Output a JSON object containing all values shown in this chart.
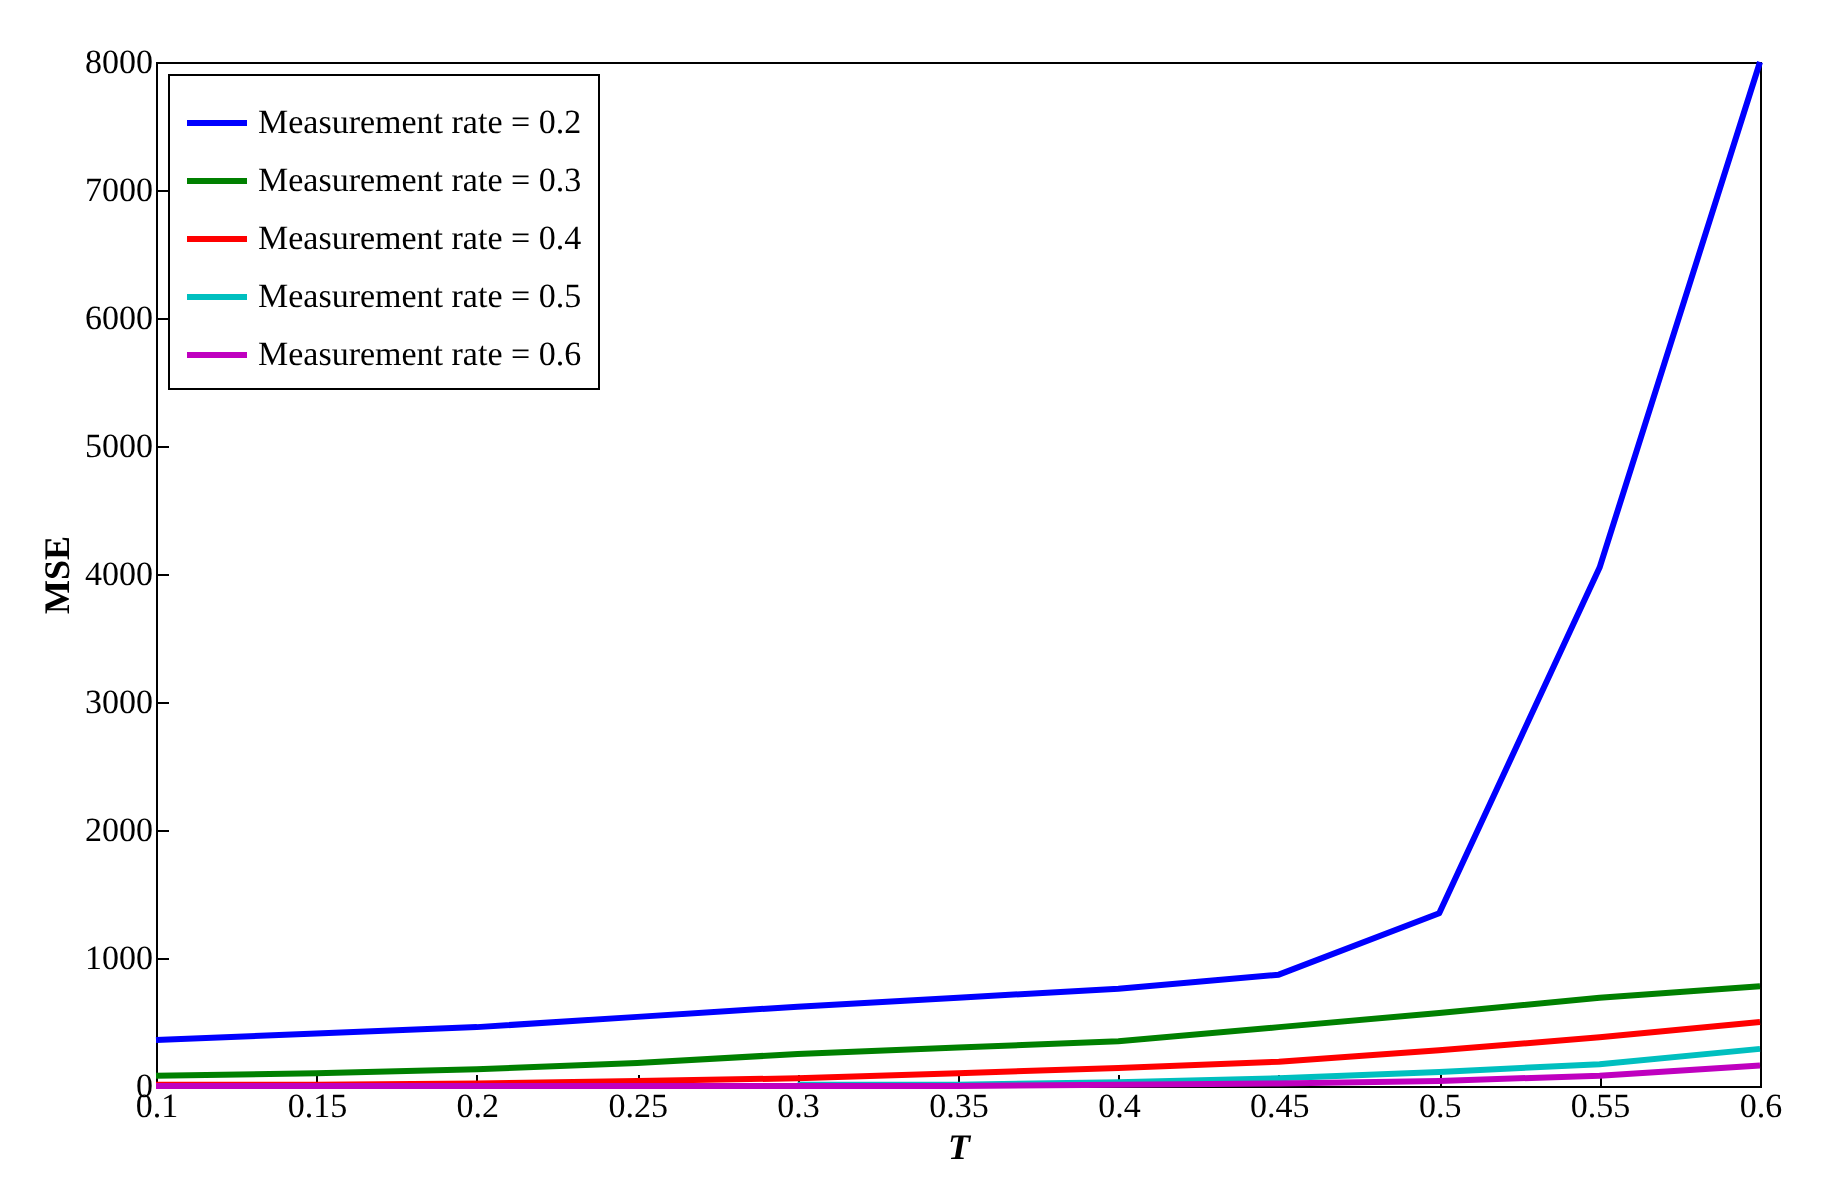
{
  "chart_data": {
    "type": "line",
    "xlabel": "T",
    "ylabel": "MSE",
    "x": [
      0.1,
      0.15,
      0.2,
      0.25,
      0.3,
      0.35,
      0.4,
      0.45,
      0.5,
      0.55,
      0.6
    ],
    "series": [
      {
        "name": "Measurement rate = 0.2",
        "color": "#0000ff",
        "values": [
          360,
          410,
          460,
          540,
          620,
          690,
          760,
          870,
          1350,
          4050,
          8000
        ]
      },
      {
        "name": "Measurement rate = 0.3",
        "color": "#008000",
        "values": [
          80,
          100,
          130,
          180,
          250,
          300,
          350,
          460,
          570,
          690,
          780
        ]
      },
      {
        "name": "Measurement rate = 0.4",
        "color": "#ff0000",
        "values": [
          10,
          10,
          20,
          40,
          60,
          100,
          140,
          190,
          280,
          380,
          500
        ]
      },
      {
        "name": "Measurement rate = 0.5",
        "color": "#00bfbf",
        "values": [
          null,
          null,
          null,
          null,
          10,
          10,
          30,
          60,
          110,
          170,
          290
        ]
      },
      {
        "name": "Measurement rate = 0.6",
        "color": "#bf00bf",
        "values": [
          0,
          0,
          0,
          0,
          0,
          0,
          10,
          20,
          40,
          80,
          160
        ]
      }
    ],
    "xlim": [
      0.1,
      0.6
    ],
    "xticks": [
      0.1,
      0.15,
      0.2,
      0.25,
      0.3,
      0.35,
      0.4,
      0.45,
      0.5,
      0.55,
      0.6
    ],
    "ylim": [
      0,
      8000
    ],
    "yticks": [
      0,
      1000,
      2000,
      3000,
      4000,
      5000,
      6000,
      7000,
      8000
    ],
    "grid": false,
    "legend": "top left",
    "marker": "none",
    "line_style": "solid"
  }
}
